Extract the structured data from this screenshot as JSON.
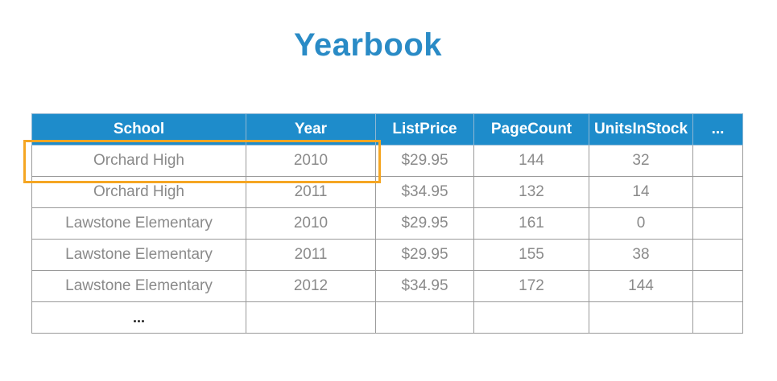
{
  "title": "Yearbook",
  "table": {
    "columns": [
      "School",
      "Year",
      "ListPrice",
      "PageCount",
      "UnitsInStock",
      "..."
    ],
    "rows": [
      [
        "Orchard High",
        "2010",
        "$29.95",
        "144",
        "32",
        ""
      ],
      [
        "Orchard High",
        "2011",
        "$34.95",
        "132",
        "14",
        ""
      ],
      [
        "Lawstone Elementary",
        "2010",
        "$29.95",
        "161",
        "0",
        ""
      ],
      [
        "Lawstone Elementary",
        "2011",
        "$29.95",
        "155",
        "38",
        ""
      ],
      [
        "Lawstone Elementary",
        "2012",
        "$34.95",
        "172",
        "144",
        ""
      ],
      [
        "...",
        "",
        "",
        "",
        "",
        ""
      ]
    ]
  },
  "highlight_color": "#f5a623",
  "header_color": "#1e8ccb",
  "title_color": "#2a8bc6"
}
